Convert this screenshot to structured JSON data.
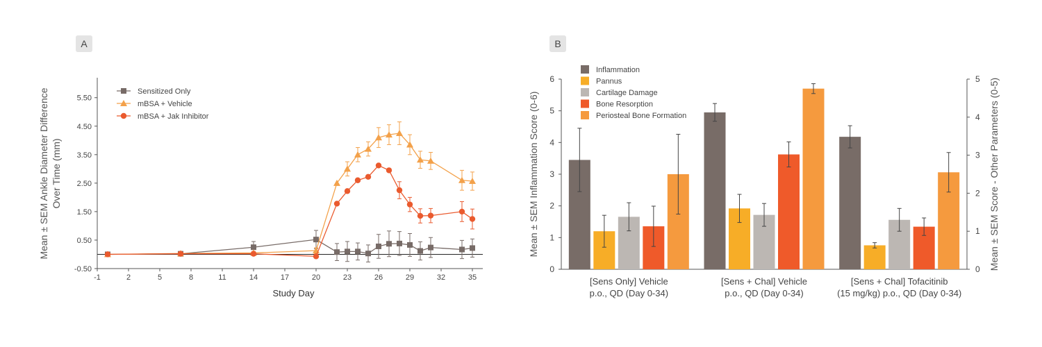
{
  "chart_data": [
    {
      "panel": "A",
      "type": "line",
      "xlabel": "Study Day",
      "ylabel": "Mean ± SEM Ankle Diameter Difference Over Time (mm)",
      "xlim": [
        -1,
        36
      ],
      "ylim": [
        -0.5,
        6.2
      ],
      "xticks": [
        -1,
        2,
        5,
        8,
        11,
        14,
        17,
        20,
        23,
        26,
        29,
        32,
        35
      ],
      "yticks": [
        -0.5,
        0.5,
        1.5,
        2.5,
        3.5,
        4.5,
        5.5
      ],
      "ytick_labels": [
        "-0.50",
        "0.50",
        "1.50",
        "2.50",
        "3.50",
        "4.50",
        "5.50"
      ],
      "legend_position": "top-left",
      "series": [
        {
          "name": "Sensitized Only",
          "color": "#776b67",
          "marker": "square",
          "x": [
            0,
            7,
            14,
            20,
            22,
            23,
            24,
            25,
            26,
            27,
            28,
            29,
            30,
            31,
            34,
            35
          ],
          "y": [
            0.0,
            0.02,
            0.25,
            0.52,
            0.08,
            0.1,
            0.1,
            0.03,
            0.28,
            0.37,
            0.38,
            0.33,
            0.12,
            0.24,
            0.17,
            0.22
          ],
          "err": [
            0.02,
            0.05,
            0.2,
            0.32,
            0.3,
            0.35,
            0.3,
            0.3,
            0.42,
            0.45,
            0.42,
            0.4,
            0.32,
            0.35,
            0.32,
            0.32
          ]
        },
        {
          "name": "mBSA + Vehicle",
          "color": "#f3a14a",
          "marker": "triangle",
          "x": [
            0,
            7,
            14,
            20,
            22,
            23,
            24,
            25,
            26,
            27,
            28,
            29,
            30,
            31,
            34,
            35
          ],
          "y": [
            0.0,
            0.03,
            0.05,
            0.13,
            2.5,
            3.0,
            3.5,
            3.7,
            4.1,
            4.2,
            4.25,
            3.85,
            3.32,
            3.28,
            2.6,
            2.57
          ],
          "err": [
            0.02,
            0.03,
            0.05,
            0.1,
            0.0,
            0.25,
            0.25,
            0.25,
            0.35,
            0.35,
            0.4,
            0.35,
            0.3,
            0.3,
            0.35,
            0.32
          ]
        },
        {
          "name": "mBSA + Jak Inhibitor",
          "color": "#ea5a2e",
          "marker": "circle",
          "x": [
            0,
            7,
            14,
            20,
            22,
            23,
            24,
            25,
            26,
            27,
            28,
            29,
            30,
            31,
            34,
            35
          ],
          "y": [
            0.0,
            0.02,
            0.02,
            -0.07,
            1.78,
            2.22,
            2.6,
            2.72,
            3.12,
            2.95,
            2.25,
            1.75,
            1.35,
            1.36,
            1.5,
            1.24
          ],
          "err": [
            0.02,
            0.02,
            0.02,
            0.03,
            0.0,
            0.0,
            0.0,
            0.0,
            0.0,
            0.0,
            0.3,
            0.25,
            0.25,
            0.25,
            0.35,
            0.35
          ]
        }
      ]
    },
    {
      "panel": "B",
      "type": "bar",
      "ylabel": "Mean ± SEM Inflammation Score (0-6)",
      "y2label": "Mean ± SEM Score - Other Parameters (0-5)",
      "ylim": [
        0,
        6
      ],
      "y2lim": [
        0,
        5
      ],
      "yticks": [
        0,
        1,
        2,
        3,
        4,
        5,
        6
      ],
      "y2ticks": [
        0,
        1,
        2,
        3,
        4,
        5
      ],
      "legend_position": "top-left",
      "categories": [
        [
          "[Sens Only] Vehicle",
          "p.o., QD (Day 0-34)"
        ],
        [
          "[Sens + Chal] Vehicle",
          "p.o., QD (Day 0-34)"
        ],
        [
          "[Sens + Chal] Tofacitinib",
          "(15 mg/kg) p.o., QD (Day 0-34)"
        ]
      ],
      "series": [
        {
          "name": "Inflammation",
          "color": "#786c67",
          "axis": "left",
          "values": [
            3.45,
            4.95,
            4.18
          ],
          "err": [
            1.0,
            0.28,
            0.35
          ]
        },
        {
          "name": "Pannus",
          "color": "#f7ad27",
          "axis": "right",
          "values": [
            1.0,
            1.6,
            0.63
          ],
          "err": [
            0.42,
            0.37,
            0.07
          ]
        },
        {
          "name": "Cartilage Damage",
          "color": "#bcb7b3",
          "axis": "right",
          "values": [
            1.38,
            1.43,
            1.3
          ],
          "err": [
            0.37,
            0.3,
            0.3
          ]
        },
        {
          "name": "Bone Resorption",
          "color": "#ef5a2a",
          "axis": "right",
          "values": [
            1.13,
            3.02,
            1.12
          ],
          "err": [
            0.53,
            0.33,
            0.23
          ]
        },
        {
          "name": "Periosteal Bone Formation",
          "color": "#f59a3e",
          "axis": "right",
          "values": [
            2.5,
            4.75,
            2.55
          ],
          "err": [
            1.05,
            0.13,
            0.52
          ]
        }
      ]
    }
  ]
}
